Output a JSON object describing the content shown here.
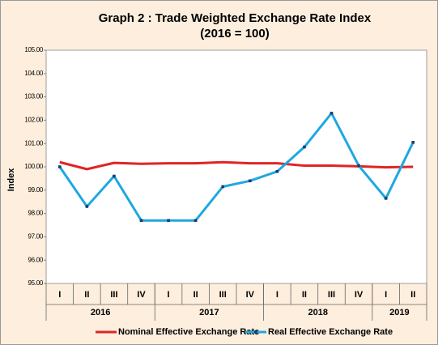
{
  "chart_data": {
    "type": "line",
    "title": "Graph 2 : Trade Weighted Exchange Rate Index",
    "subtitle": "(2016 = 100)",
    "y_label": "Index",
    "category_groups": [
      {
        "label": "2016",
        "categories": [
          "I",
          "II",
          "III",
          "IV"
        ]
      },
      {
        "label": "2017",
        "categories": [
          "I",
          "II",
          "III",
          "IV"
        ]
      },
      {
        "label": "2018",
        "categories": [
          "I",
          "II",
          "III",
          "IV"
        ]
      },
      {
        "label": "2019",
        "categories": [
          "I",
          "II"
        ]
      }
    ],
    "series": [
      {
        "name": "Nominal Effective Exchange Rate",
        "color": "#e02424",
        "values": [
          100.2,
          99.9,
          100.17,
          100.13,
          100.15,
          100.15,
          100.2,
          100.15,
          100.15,
          100.05,
          100.05,
          100.02,
          99.98,
          100.0
        ]
      },
      {
        "name": "Real Effective Exchange Rate",
        "color": "#1fa7e1",
        "marker": true,
        "values": [
          100.0,
          98.3,
          99.6,
          97.7,
          97.7,
          97.7,
          99.15,
          99.4,
          99.8,
          100.85,
          102.3,
          100.05,
          98.65,
          101.05
        ]
      }
    ],
    "ylim": [
      95,
      105
    ],
    "yticks": [
      {
        "value": 95,
        "label": "95.00"
      },
      {
        "value": 96,
        "label": "96.00"
      },
      {
        "value": 97,
        "label": "97.00"
      },
      {
        "value": 98,
        "label": "98.00"
      },
      {
        "value": 99,
        "label": "99.00"
      },
      {
        "value": 100,
        "label": "100.00"
      },
      {
        "value": 101,
        "label": "101.00"
      },
      {
        "value": 102,
        "label": "102.00"
      },
      {
        "value": 103,
        "label": "103.00"
      },
      {
        "value": 104,
        "label": "104.00"
      },
      {
        "value": 105,
        "label": "105.00"
      }
    ],
    "grid": false,
    "legend": "bottom"
  }
}
